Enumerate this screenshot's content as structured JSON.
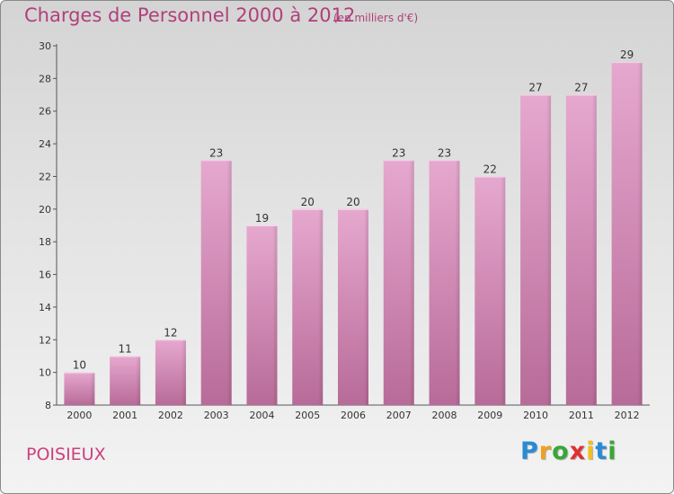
{
  "title": "Charges de Personnel 2000 à 2012",
  "subtitle": "(en milliers d'€)",
  "place": "POISIEUX",
  "logo": {
    "letters": [
      {
        "char": "P",
        "color": "#2a8ad4"
      },
      {
        "char": "r",
        "color": "#f0a020"
      },
      {
        "char": "o",
        "color": "#3aa63a"
      },
      {
        "char": "x",
        "color": "#e03030"
      },
      {
        "char": "i",
        "color": "#f0c020"
      },
      {
        "char": "t",
        "color": "#2a8ad4"
      },
      {
        "char": "i",
        "color": "#3aa63a"
      }
    ]
  },
  "chart_data": {
    "type": "bar",
    "title": "Charges de Personnel 2000 à 2012",
    "subtitle": "(en milliers d'€)",
    "categories": [
      "2000",
      "2001",
      "2002",
      "2003",
      "2004",
      "2005",
      "2006",
      "2007",
      "2008",
      "2009",
      "2010",
      "2011",
      "2012"
    ],
    "values": [
      10,
      11,
      12,
      23,
      19,
      20,
      20,
      23,
      23,
      22,
      27,
      27,
      29
    ],
    "ylim": [
      8,
      30
    ],
    "yticks": [
      8,
      10,
      12,
      14,
      16,
      18,
      20,
      22,
      24,
      26,
      28,
      30
    ],
    "grid": false,
    "bar_color": "#d98ab8"
  }
}
